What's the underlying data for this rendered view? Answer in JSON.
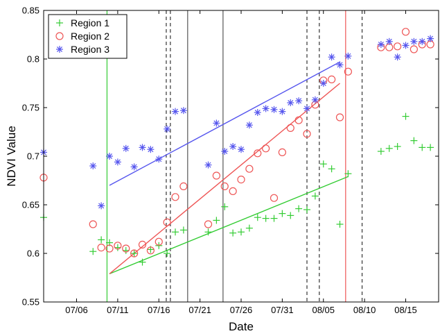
{
  "chart_data": {
    "type": "scatter",
    "xlabel": "Date",
    "ylabel": "NDVI Value",
    "ylim": [
      0.55,
      0.85
    ],
    "xlim": [
      "07/02",
      "08/19"
    ],
    "x_ticks": [
      "07/06",
      "07/11",
      "07/16",
      "07/21",
      "07/26",
      "07/31",
      "08/05",
      "08/10",
      "08/15"
    ],
    "y_ticks": [
      "0.55",
      "0.6",
      "0.65",
      "0.7",
      "0.75",
      "0.8",
      "0.85"
    ],
    "legend_position": "top-left",
    "series": [
      {
        "name": "Region 1",
        "color": "#33cc33",
        "marker": "plus",
        "points": [
          [
            "07/02",
            0.637
          ],
          [
            "07/08",
            0.602
          ],
          [
            "07/09",
            0.614
          ],
          [
            "07/10",
            0.611
          ],
          [
            "07/11",
            0.606
          ],
          [
            "07/12",
            0.603
          ],
          [
            "07/13",
            0.6
          ],
          [
            "07/14",
            0.591
          ],
          [
            "07/15",
            0.604
          ],
          [
            "07/16",
            0.608
          ],
          [
            "07/17",
            0.6
          ],
          [
            "07/18",
            0.622
          ],
          [
            "07/19",
            0.624
          ],
          [
            "07/22",
            0.622
          ],
          [
            "07/23",
            0.634
          ],
          [
            "07/24",
            0.648
          ],
          [
            "07/25",
            0.621
          ],
          [
            "07/26",
            0.622
          ],
          [
            "07/27",
            0.626
          ],
          [
            "07/28",
            0.637
          ],
          [
            "07/29",
            0.636
          ],
          [
            "07/30",
            0.636
          ],
          [
            "07/31",
            0.641
          ],
          [
            "08/01",
            0.639
          ],
          [
            "08/02",
            0.646
          ],
          [
            "08/03",
            0.645
          ],
          [
            "08/04",
            0.659
          ],
          [
            "08/05",
            0.692
          ],
          [
            "08/06",
            0.687
          ],
          [
            "08/07",
            0.63
          ],
          [
            "08/08",
            0.682
          ],
          [
            "08/12",
            0.705
          ],
          [
            "08/13",
            0.708
          ],
          [
            "08/14",
            0.71
          ],
          [
            "08/15",
            0.741
          ],
          [
            "08/16",
            0.716
          ],
          [
            "08/17",
            0.709
          ],
          [
            "08/18",
            0.709
          ]
        ]
      },
      {
        "name": "Region 2",
        "color": "#ee5555",
        "marker": "circle",
        "points": [
          [
            "07/02",
            0.678
          ],
          [
            "07/08",
            0.63
          ],
          [
            "07/09",
            0.606
          ],
          [
            "07/10",
            0.605
          ],
          [
            "07/11",
            0.608
          ],
          [
            "07/12",
            0.605
          ],
          [
            "07/13",
            0.6
          ],
          [
            "07/14",
            0.609
          ],
          [
            "07/15",
            0.603
          ],
          [
            "07/16",
            0.612
          ],
          [
            "07/17",
            0.632
          ],
          [
            "07/18",
            0.658
          ],
          [
            "07/19",
            0.669
          ],
          [
            "07/22",
            0.63
          ],
          [
            "07/23",
            0.68
          ],
          [
            "07/24",
            0.669
          ],
          [
            "07/25",
            0.664
          ],
          [
            "07/26",
            0.676
          ],
          [
            "07/27",
            0.687
          ],
          [
            "07/28",
            0.703
          ],
          [
            "07/29",
            0.708
          ],
          [
            "07/30",
            0.657
          ],
          [
            "07/31",
            0.704
          ],
          [
            "08/01",
            0.729
          ],
          [
            "08/02",
            0.737
          ],
          [
            "08/03",
            0.723
          ],
          [
            "08/04",
            0.753
          ],
          [
            "08/05",
            0.778
          ],
          [
            "08/06",
            0.779
          ],
          [
            "08/07",
            0.74
          ],
          [
            "08/08",
            0.787
          ],
          [
            "08/12",
            0.812
          ],
          [
            "08/13",
            0.812
          ],
          [
            "08/14",
            0.813
          ],
          [
            "08/15",
            0.828
          ],
          [
            "08/16",
            0.81
          ],
          [
            "08/17",
            0.815
          ],
          [
            "08/18",
            0.815
          ]
        ]
      },
      {
        "name": "Region 3",
        "color": "#5555ee",
        "marker": "asterisk",
        "points": [
          [
            "07/02",
            0.704
          ],
          [
            "07/08",
            0.69
          ],
          [
            "07/09",
            0.649
          ],
          [
            "07/10",
            0.7
          ],
          [
            "07/11",
            0.694
          ],
          [
            "07/12",
            0.708
          ],
          [
            "07/13",
            0.689
          ],
          [
            "07/14",
            0.709
          ],
          [
            "07/15",
            0.707
          ],
          [
            "07/16",
            0.697
          ],
          [
            "07/17",
            0.728
          ],
          [
            "07/18",
            0.746
          ],
          [
            "07/19",
            0.747
          ],
          [
            "07/22",
            0.691
          ],
          [
            "07/23",
            0.734
          ],
          [
            "07/24",
            0.705
          ],
          [
            "07/25",
            0.71
          ],
          [
            "07/26",
            0.707
          ],
          [
            "07/27",
            0.732
          ],
          [
            "07/28",
            0.745
          ],
          [
            "07/29",
            0.749
          ],
          [
            "07/30",
            0.748
          ],
          [
            "07/31",
            0.746
          ],
          [
            "08/01",
            0.755
          ],
          [
            "08/02",
            0.757
          ],
          [
            "08/03",
            0.749
          ],
          [
            "08/04",
            0.758
          ],
          [
            "08/05",
            0.775
          ],
          [
            "08/06",
            0.802
          ],
          [
            "08/07",
            0.794
          ],
          [
            "08/08",
            0.803
          ],
          [
            "08/12",
            0.815
          ],
          [
            "08/13",
            0.818
          ],
          [
            "08/14",
            0.802
          ],
          [
            "08/15",
            0.814
          ],
          [
            "08/16",
            0.818
          ],
          [
            "08/17",
            0.818
          ],
          [
            "08/18",
            0.821
          ]
        ]
      }
    ],
    "trend_lines": [
      {
        "series": "Region 1",
        "color": "#33cc33",
        "from": [
          "07/10",
          0.579
        ],
        "to": [
          "08/08",
          0.679
        ]
      },
      {
        "series": "Region 2",
        "color": "#ee5555",
        "from": [
          "07/10",
          0.579
        ],
        "to": [
          "08/07",
          0.775
        ]
      },
      {
        "series": "Region 3",
        "color": "#5555ee",
        "from": [
          "07/10",
          0.67
        ],
        "to": [
          "08/07",
          0.797
        ]
      }
    ],
    "vertical_lines": [
      {
        "x": "07/09.7",
        "style": "solid",
        "color": "#33cc33"
      },
      {
        "x": "07/16.9",
        "style": "dashed",
        "color": "#333333"
      },
      {
        "x": "07/17.4",
        "style": "dashed",
        "color": "#333333"
      },
      {
        "x": "07/19.5",
        "style": "solid",
        "color": "#555555"
      },
      {
        "x": "07/23.8",
        "style": "solid",
        "color": "#555555"
      },
      {
        "x": "08/03.0",
        "style": "dashed",
        "color": "#333333"
      },
      {
        "x": "08/04.5",
        "style": "dashed",
        "color": "#333333"
      },
      {
        "x": "08/07.7",
        "style": "solid",
        "color": "#ee5555"
      },
      {
        "x": "08/09.7",
        "style": "dashed",
        "color": "#333333"
      }
    ]
  }
}
